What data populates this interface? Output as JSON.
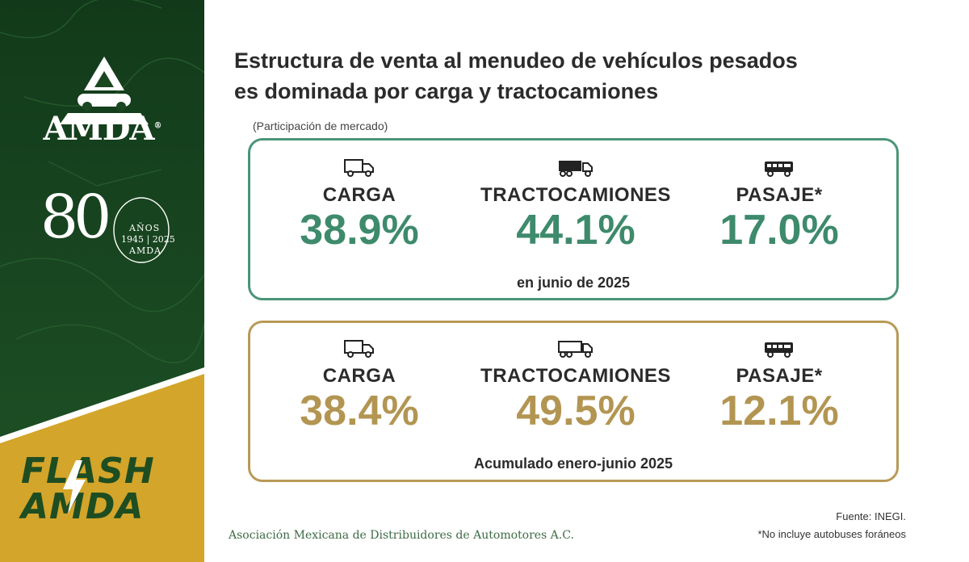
{
  "sidebar": {
    "logo_text": "AMDA",
    "logo_registered": "®",
    "anniversary": {
      "number": "80",
      "anos": "AÑOS",
      "years": "1945 | 2025",
      "org": "AMDA"
    },
    "flash_line1": "FLASH",
    "flash_line2": "AMDA",
    "colors": {
      "green": "#1e4d22",
      "gold": "#d3a52a"
    }
  },
  "title": "Estructura de venta al menudeo de vehículos pesados es dominada por carga y tractocamiones",
  "subtitle": "(Participación de mercado)",
  "panels": [
    {
      "accent": "#3e8a6c",
      "items": [
        {
          "icon": "truck-icon",
          "label": "CARGA",
          "value": "38.9%"
        },
        {
          "icon": "tractor-trailer-icon",
          "label": "TRACTOCAMIONES",
          "value": "44.1%"
        },
        {
          "icon": "bus-icon",
          "label": "PASAJE*",
          "value": "17.0%"
        }
      ],
      "caption": "en junio de 2025"
    },
    {
      "accent": "#b39552",
      "items": [
        {
          "icon": "truck-icon",
          "label": "CARGA",
          "value": "38.4%"
        },
        {
          "icon": "tractor-trailer-icon",
          "label": "TRACTOCAMIONES",
          "value": "49.5%"
        },
        {
          "icon": "bus-icon",
          "label": "PASAJE*",
          "value": "12.1%"
        }
      ],
      "caption": "Acumulado enero-junio 2025"
    }
  ],
  "footer": {
    "organization": "Asociación Mexicana de Distribuidores de Automotores A.C.",
    "source": "Fuente: INEGI.",
    "note": "*No incluye autobuses foráneos"
  }
}
